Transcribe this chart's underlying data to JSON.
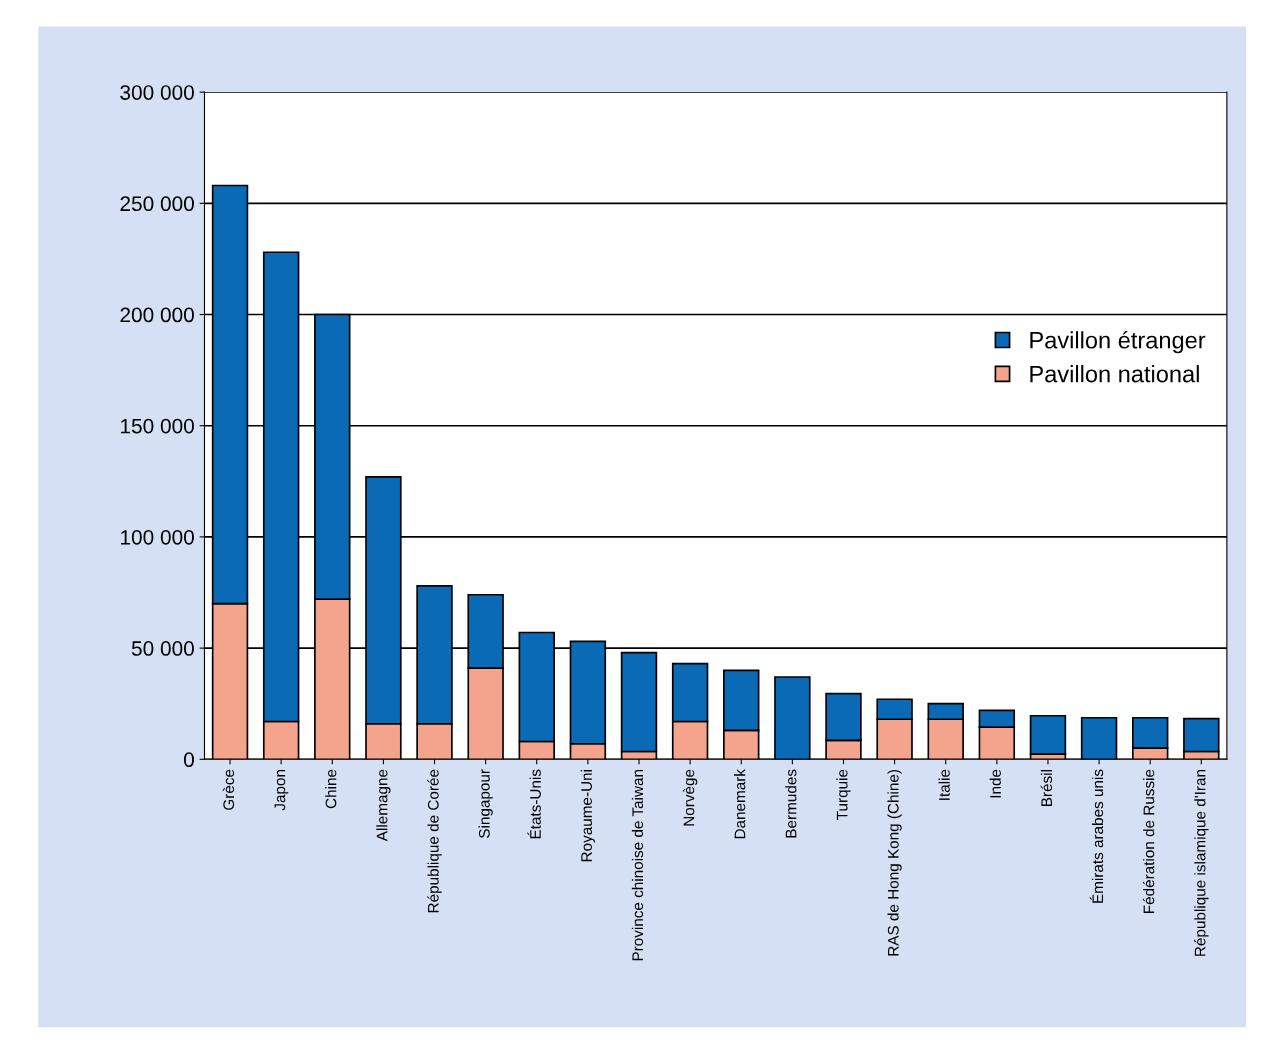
{
  "chart_data": {
    "type": "bar",
    "stacked": true,
    "categories": [
      "Grèce",
      "Japon",
      "Chine",
      "Allemagne",
      "République de Corée",
      "Singapour",
      "États-Unis",
      "Royaume-Uni",
      "Province chinoise de Taiwan",
      "Norvège",
      "Danemark",
      "Bermudes",
      "Turquie",
      "RAS de Hong Kong (Chine)",
      "Italie",
      "Inde",
      "Brésil",
      "Émirats arabes unis",
      "Fédération de Russie",
      "République islamique d'Iran"
    ],
    "series": [
      {
        "name": "Pavillon national",
        "color": "#f4a38c",
        "values": [
          70000,
          17000,
          72000,
          16000,
          16000,
          41000,
          8000,
          7000,
          3500,
          17000,
          13000,
          0,
          8500,
          18000,
          18000,
          14500,
          2300,
          null,
          5000,
          3500
        ]
      },
      {
        "name": "Pavillon étranger",
        "color": "#0a6ab5",
        "values": [
          188000,
          211000,
          128000,
          111000,
          62000,
          33000,
          49000,
          46000,
          44500,
          26000,
          27000,
          37000,
          21000,
          9000,
          7000,
          7500,
          17300,
          18700,
          13700,
          14800
        ]
      }
    ],
    "ylim": [
      0,
      300000
    ],
    "yticks": [
      {
        "value": 0,
        "label": "0"
      },
      {
        "value": 50000,
        "label": "50 000"
      },
      {
        "value": 100000,
        "label": "100 000"
      },
      {
        "value": 150000,
        "label": "150 000"
      },
      {
        "value": 200000,
        "label": "200 000"
      },
      {
        "value": 250000,
        "label": "250 000"
      },
      {
        "value": 300000,
        "label": "300 000"
      }
    ],
    "grid": "y",
    "legend": "right"
  }
}
